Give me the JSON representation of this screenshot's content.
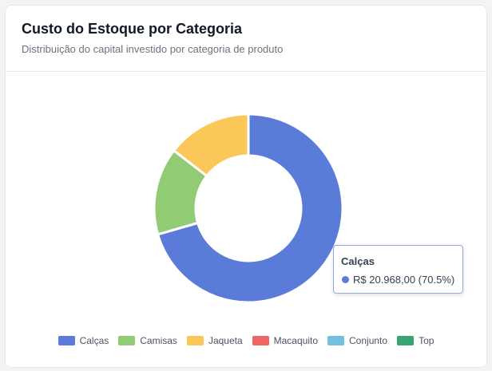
{
  "card": {
    "title": "Custo do Estoque por Categoria",
    "subtitle": "Distribuição do capital investido por categoria de produto"
  },
  "chart_data": {
    "type": "pie",
    "donut": true,
    "categories": [
      "Calças",
      "Camisas",
      "Jaqueta",
      "Macaquito",
      "Conjunto",
      "Top"
    ],
    "values": [
      20968.0,
      4460,
      4310,
      0,
      0,
      0
    ],
    "colors": [
      "#5b7bd9",
      "#91cc75",
      "#fac858",
      "#ee6666",
      "#73c0de",
      "#3ba272"
    ],
    "legend_position": "bottom",
    "tooltip": {
      "title": "Calças",
      "value": "R$ 20.968,00 (70.5%)"
    }
  }
}
